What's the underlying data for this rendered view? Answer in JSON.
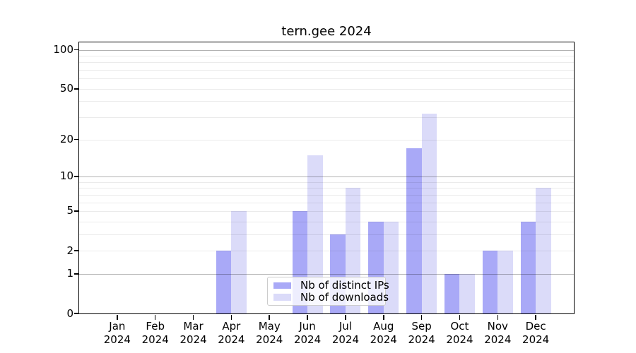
{
  "chart_data": {
    "type": "bar",
    "title": "tern.gee 2024",
    "categories": [
      "Jan 2024",
      "Feb 2024",
      "Mar 2024",
      "Apr 2024",
      "May 2024",
      "Jun 2024",
      "Jul 2024",
      "Aug 2024",
      "Sep 2024",
      "Oct 2024",
      "Nov 2024",
      "Dec 2024"
    ],
    "series": [
      {
        "name": "Nb of distinct IPs",
        "color": "#a9a9f7",
        "values": [
          0,
          0,
          0,
          2,
          0,
          5,
          3,
          4,
          17,
          1,
          2,
          4
        ]
      },
      {
        "name": "Nb of downloads",
        "color": "#dbdbf9",
        "values": [
          0,
          0,
          0,
          5,
          0,
          15,
          8,
          4,
          32,
          1,
          2,
          8
        ]
      }
    ],
    "yscale": "log1p",
    "ylim": [
      0,
      114
    ],
    "y_ticks": [
      0,
      1,
      2,
      5,
      10,
      20,
      50,
      100
    ],
    "y_tick_labels": [
      "0",
      "1",
      "2",
      "5",
      "10",
      "20",
      "50",
      "100"
    ],
    "grid": {
      "major": [
        1,
        10,
        100
      ],
      "minor": [
        2,
        3,
        4,
        5,
        6,
        7,
        8,
        9,
        20,
        30,
        40,
        50,
        60,
        70,
        80,
        90
      ]
    },
    "legend_position": "lower center",
    "xlabel": "",
    "ylabel": ""
  },
  "colors": {
    "background": "#ffffff",
    "axis": "#000000",
    "grid_major": "#b3b3b3",
    "grid_minor": "#ebebeb",
    "legend_border": "#cccccc",
    "series_distinct_ips": "#a9a9f7",
    "series_downloads": "#dbdbf9"
  }
}
